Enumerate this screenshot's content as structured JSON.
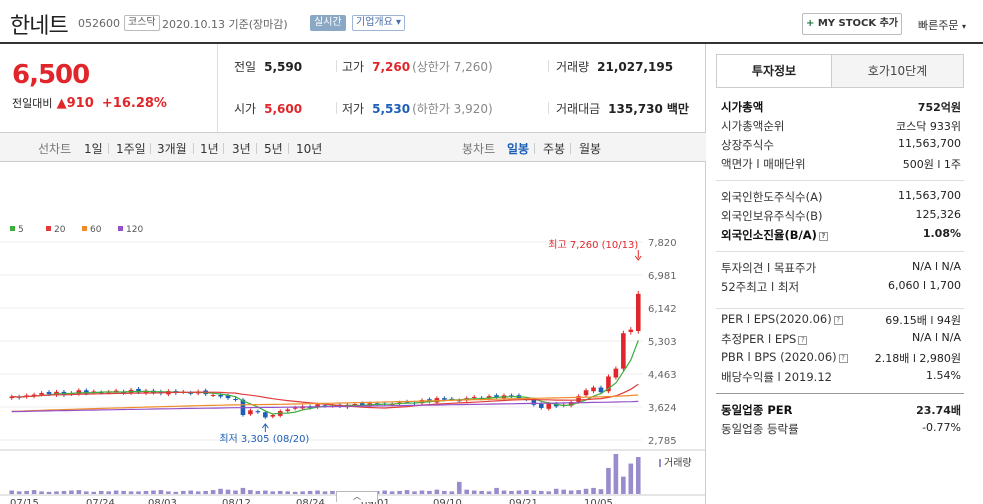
{
  "header": {
    "name": "한네트",
    "code": "052600",
    "market": "코스닥",
    "date": "2020.10.13",
    "basis": "기준(장마감)",
    "live": "실시간",
    "company": "기업개요",
    "mystock": "MY STOCK 추가",
    "quick_order": "빠른주문"
  },
  "price": {
    "current": "6,500",
    "change_label": "전일대비",
    "change": "910",
    "change_pct": "+16.28%"
  },
  "stats": {
    "prev_label": "전일",
    "prev": "5,590",
    "high_label": "고가",
    "high": "7,260",
    "high_note": "(상한가 7,260)",
    "volume_label": "거래량",
    "volume": "21,027,195",
    "open_label": "시가",
    "open": "5,600",
    "low_label": "저가",
    "low": "5,530",
    "low_note": "(하한가 3,920)",
    "amount_label": "거래대금",
    "amount": "135,730",
    "amount_unit": "백만"
  },
  "tabs": {
    "line_label": "선차트",
    "periods": [
      "1일",
      "1주일",
      "3개월",
      "1년",
      "3년",
      "5년",
      "10년"
    ],
    "candle_label": "봉차트",
    "candles": [
      "일봉",
      "주봉",
      "월봉"
    ]
  },
  "chart_data": {
    "type": "candlestick",
    "legend": [
      "5",
      "20",
      "60",
      "120"
    ],
    "legend_colors": [
      "#3cae3c",
      "#e03c3c",
      "#f08c28",
      "#9650c8"
    ],
    "y_ticks": [
      "7,820",
      "6,981",
      "6,142",
      "5,303",
      "4,463",
      "3,624",
      "2,785"
    ],
    "ylim": [
      2785,
      7820
    ],
    "x_ticks": [
      "07/15",
      "07/24",
      "08/03",
      "08/12",
      "08/24",
      "09/01",
      "09/10",
      "09/21",
      "10/05"
    ],
    "high_note": "최고 7,260 (10/13)",
    "low_note": "최저 3,305 (08/20)",
    "volume_label": "거래량",
    "closes": [
      3890,
      3860,
      3920,
      3940,
      3980,
      3950,
      4010,
      3930,
      3980,
      4050,
      3970,
      4020,
      3990,
      4010,
      4040,
      3980,
      4060,
      4000,
      4040,
      3990,
      3970,
      4030,
      3980,
      4010,
      3970,
      4020,
      3950,
      3930,
      3890,
      3850,
      3810,
      3420,
      3540,
      3490,
      3360,
      3420,
      3520,
      3560,
      3610,
      3640,
      3600,
      3690,
      3650,
      3660,
      3640,
      3680,
      3700,
      3660,
      3720,
      3690,
      3710,
      3700,
      3740,
      3760,
      3720,
      3800,
      3760,
      3850,
      3810,
      3820,
      3790,
      3850,
      3880,
      3840,
      3900,
      3870,
      3920,
      3900,
      3850,
      3820,
      3680,
      3600,
      3710,
      3640,
      3680,
      3750,
      3900,
      4050,
      4120,
      4000,
      4400,
      4600,
      5500,
      5590,
      6500
    ],
    "volumes": [
      8,
      6,
      7,
      9,
      6,
      5,
      6,
      7,
      8,
      9,
      6,
      5,
      7,
      6,
      8,
      7,
      6,
      6,
      7,
      8,
      9,
      6,
      5,
      7,
      8,
      6,
      7,
      9,
      12,
      10,
      8,
      14,
      9,
      7,
      8,
      6,
      7,
      6,
      5,
      6,
      7,
      8,
      6,
      7,
      6,
      7,
      6,
      5,
      6,
      7,
      8,
      6,
      7,
      9,
      6,
      8,
      7,
      10,
      7,
      6,
      28,
      10,
      8,
      7,
      6,
      14,
      8,
      7,
      8,
      9,
      8,
      7,
      6,
      12,
      10,
      8,
      9,
      12,
      14,
      11,
      60,
      92,
      40,
      70,
      85
    ]
  },
  "info": {
    "tab_active": "투자정보",
    "tab_other": "호가10단계",
    "rows1": [
      {
        "k": "시가총액",
        "v": "752억원",
        "bold": true
      },
      {
        "k": "시가총액순위",
        "v": "코스닥 933위"
      },
      {
        "k": "상장주식수",
        "v": "11,563,700"
      },
      {
        "k": "액면가 l 매매단위",
        "v": "500원 l 1주"
      }
    ],
    "rows2": [
      {
        "k": "외국인한도주식수(A)",
        "v": "11,563,700"
      },
      {
        "k": "외국인보유주식수(B)",
        "v": "125,326"
      },
      {
        "k": "외국인소진율(B/A)",
        "v": "1.08%",
        "bold": true
      }
    ],
    "rows3": [
      {
        "k": "투자의견 l 목표주가",
        "v": "N/A l N/A"
      },
      {
        "k": "52주최고 l 최저",
        "v": "6,060 l 1,700"
      }
    ],
    "rows4": [
      {
        "k": "PER l EPS(2020.06)",
        "v": "69.15배 l 94원"
      },
      {
        "k": "추정PER l EPS",
        "v": "N/A l N/A"
      },
      {
        "k": "PBR l BPS (2020.06)",
        "v": "2.18배 l 2,980원"
      },
      {
        "k": "배당수익률 l 2019.12",
        "v": "1.54%"
      }
    ],
    "industry_per_label": "동일업종 PER",
    "industry_per": "23.74배",
    "industry_chg_label": "동일업종 등락률",
    "industry_chg": "-0.77%"
  }
}
